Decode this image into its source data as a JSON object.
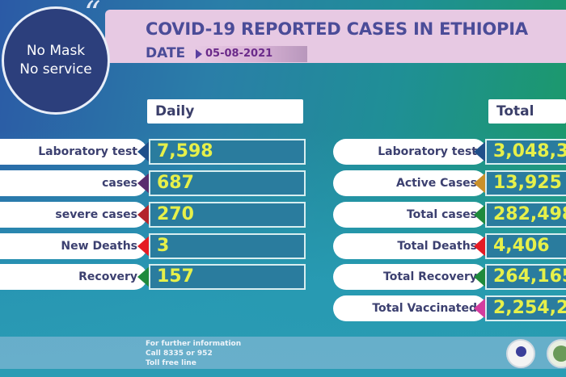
{
  "badge": {
    "line1": "No Mask",
    "line2": "No service"
  },
  "header": {
    "title": "COVID-19 REPORTED CASES IN ETHIOPIA",
    "date_label": "DATE",
    "date": "05-08-2021"
  },
  "daily": {
    "title": "Daily",
    "rows": [
      {
        "label": "Laboratory test",
        "value": "7,598",
        "color": "#1f4f8a"
      },
      {
        "label": "cases",
        "value": "687",
        "color": "#5a2d6e"
      },
      {
        "label": "severe cases",
        "value": "270",
        "color": "#b3252b"
      },
      {
        "label": "New Deaths",
        "value": "3",
        "color": "#e51b24"
      },
      {
        "label": "Recovery",
        "value": "157",
        "color": "#1f8a3c"
      }
    ]
  },
  "total": {
    "title": "Total",
    "rows": [
      {
        "label": "Laboratory test",
        "value": "3,048,3",
        "color": "#1f4f8a"
      },
      {
        "label": "Active Cases",
        "value": "13,925",
        "color": "#c9902a"
      },
      {
        "label": "Total cases",
        "value": "282,498",
        "color": "#1f8a3c"
      },
      {
        "label": "Total Deaths",
        "value": "4,406",
        "color": "#e51b24"
      },
      {
        "label": "Total Recovery",
        "value": "264,165",
        "color": "#1f8a3c"
      },
      {
        "label": "Total Vaccinated",
        "value": "2,254,2",
        "color": "#d43c9e"
      }
    ]
  },
  "footer": {
    "line1": "For further information",
    "line2": "Call 8335 or 952",
    "line3": "Toll free line"
  }
}
